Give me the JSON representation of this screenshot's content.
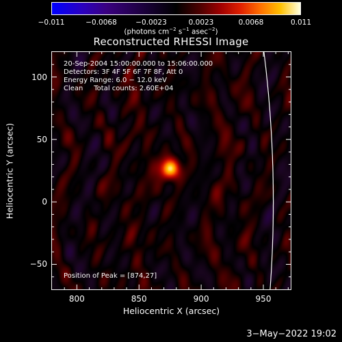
{
  "colorbar": {
    "ticks": [
      "−0.011",
      "−0.0068",
      "−0.0023",
      "0.0023",
      "0.0068",
      "0.011"
    ],
    "units_main": "(photons cm",
    "units_sup1": "−2",
    "units_mid": " s",
    "units_sup2": "−1",
    "units_mid2": " asec",
    "units_sup3": "−2",
    "units_end": ")"
  },
  "chart_data": {
    "type": "heatmap",
    "title": "Reconstructed RHESSI Image",
    "xlabel": "Heliocentric X (arcsec)",
    "ylabel": "Heliocentric Y (arcsec)",
    "xlim": [
      780,
      972
    ],
    "ylim": [
      -70,
      120
    ],
    "xticks": [
      800,
      850,
      900,
      950
    ],
    "yticks": [
      -50,
      0,
      50,
      100
    ],
    "clim": [
      -0.011,
      0.011
    ],
    "peak": {
      "x": 874,
      "y": 27
    },
    "limb_radius_arcsec": 958,
    "annotations": {
      "line1": "20-Sep-2004 15:00:00.000 to 15:06:00.000",
      "line2": "Detectors: 3F 4F 5F 6F 7F 8F, Att 0",
      "line3": "Energy Range: 6.0 − 12.0 keV",
      "line4": "Clean     Total counts: 2.60E+04",
      "peak_text": "Position of Peak = [874,27]"
    }
  },
  "timestamp": "3−May−2022 19:02"
}
